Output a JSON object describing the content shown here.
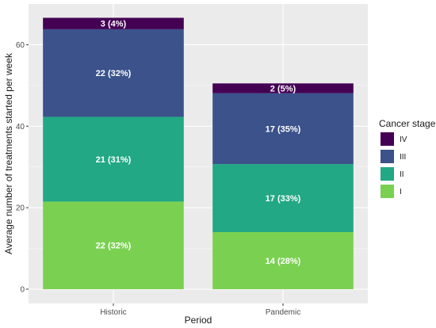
{
  "chart_data": {
    "type": "bar",
    "stacked": true,
    "categories": [
      "Historic",
      "Pandemic"
    ],
    "series": [
      {
        "name": "I",
        "values": [
          21.5,
          14.0
        ],
        "labels": [
          "22 (32%)",
          "14 (28%)"
        ],
        "color": "#7ad151"
      },
      {
        "name": "II",
        "values": [
          20.8,
          16.7
        ],
        "labels": [
          "21 (31%)",
          "17 (33%)"
        ],
        "color": "#22a884"
      },
      {
        "name": "III",
        "values": [
          21.5,
          17.4
        ],
        "labels": [
          "22 (32%)",
          "17 (35%)"
        ],
        "color": "#3b528b"
      },
      {
        "name": "IV",
        "values": [
          2.8,
          2.4
        ],
        "labels": [
          "3 (4%)",
          "2 (5%)"
        ],
        "color": "#440154"
      }
    ],
    "xlabel": "Period",
    "ylabel": "Average number of treatments started per week",
    "yticks": [
      0,
      20,
      40,
      60
    ],
    "ylim": [
      -3.5,
      70
    ],
    "grid": true,
    "legend": {
      "title": "Cancer stage",
      "position": "right",
      "order": [
        "IV",
        "III",
        "II",
        "I"
      ]
    },
    "colors": {
      "panel_background": "#ebebeb",
      "grid_major": "#ffffff",
      "grid_minor": "#f5f5f5"
    }
  }
}
